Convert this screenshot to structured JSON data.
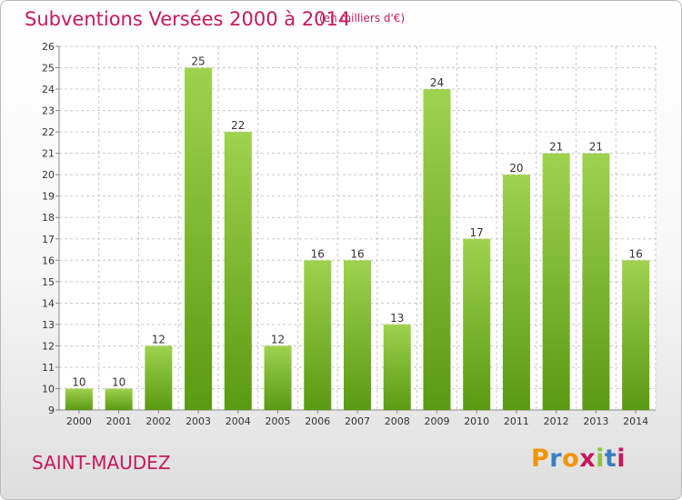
{
  "header": {
    "title": "Subventions Versées 2000 à 2014",
    "unit_note": "(en milliers d'€)"
  },
  "footer": {
    "commune": "SAINT-MAUDEZ",
    "logo_text": "Proxiti",
    "logo_colors": [
      "#f29400",
      "#3a7fc1",
      "#f29400",
      "#c4195c",
      "#8cc63f",
      "#3a7fc1",
      "#c4195c"
    ]
  },
  "colors": {
    "bar_light": "#9fd24e",
    "bar_dark": "#5a9a12",
    "accent": "#c4195c",
    "grid": "#c8c8c8",
    "text": "#333333"
  },
  "chart_data": {
    "type": "bar",
    "categories": [
      "2000",
      "2001",
      "2002",
      "2003",
      "2004",
      "2005",
      "2006",
      "2007",
      "2008",
      "2009",
      "2010",
      "2011",
      "2012",
      "2013",
      "2014"
    ],
    "values": [
      10,
      10,
      12,
      25,
      22,
      12,
      16,
      16,
      13,
      24,
      17,
      20,
      21,
      21,
      16
    ],
    "data_labels": [
      "10",
      "10",
      "12",
      "25",
      "22",
      "12",
      "16",
      "16",
      "13",
      "24",
      "17",
      "20",
      "21",
      "21",
      "16"
    ],
    "yticks": [
      "9",
      "10",
      "11",
      "12",
      "13",
      "14",
      "15",
      "16",
      "17",
      "18",
      "19",
      "20",
      "21",
      "22",
      "23",
      "24",
      "25",
      "26"
    ],
    "ylim": [
      9,
      26
    ],
    "grid": true
  }
}
